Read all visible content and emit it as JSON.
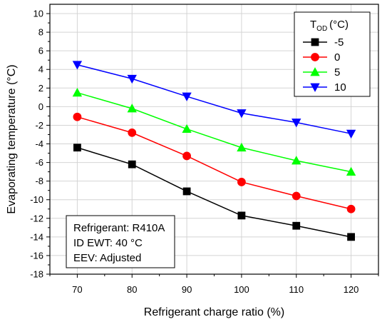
{
  "chart_data": {
    "type": "line",
    "x": [
      70,
      80,
      90,
      100,
      110,
      120
    ],
    "xlabel": "Refrigerant charge ratio (%)",
    "ylabel": "Evaporating temperature (°C)",
    "xlim": [
      65,
      125
    ],
    "ylim": [
      -18,
      11
    ],
    "x_ticks": [
      70,
      80,
      90,
      100,
      110,
      120
    ],
    "y_ticks": [
      -18,
      -16,
      -14,
      -12,
      -10,
      -8,
      -6,
      -4,
      -2,
      0,
      2,
      4,
      6,
      8,
      10
    ],
    "grid": true,
    "legend": {
      "title_main": "T",
      "title_sub": "OD",
      "title_unit": "(°C)",
      "placement": "top-right"
    },
    "series": [
      {
        "name": "-5",
        "values": [
          -4.4,
          -6.2,
          -9.1,
          -11.7,
          -12.8,
          -14.0
        ],
        "color": "#000000",
        "marker": "square"
      },
      {
        "name": "0",
        "values": [
          -1.1,
          -2.8,
          -5.3,
          -8.1,
          -9.6,
          -11.0
        ],
        "color": "#ff0000",
        "marker": "circle"
      },
      {
        "name": "5",
        "values": [
          1.5,
          -0.2,
          -2.4,
          -4.4,
          -5.8,
          -7.0
        ],
        "color": "#00ff00",
        "marker": "triangle-up"
      },
      {
        "name": "10",
        "values": [
          4.5,
          3.0,
          1.1,
          -0.7,
          -1.7,
          -2.9
        ],
        "color": "#0000ff",
        "marker": "triangle-down"
      }
    ],
    "annotation": {
      "lines": [
        "Refrigerant: R410A",
        "ID EWT: 40 °C",
        "EEV: Adjusted"
      ],
      "placement": "bottom-left"
    }
  }
}
